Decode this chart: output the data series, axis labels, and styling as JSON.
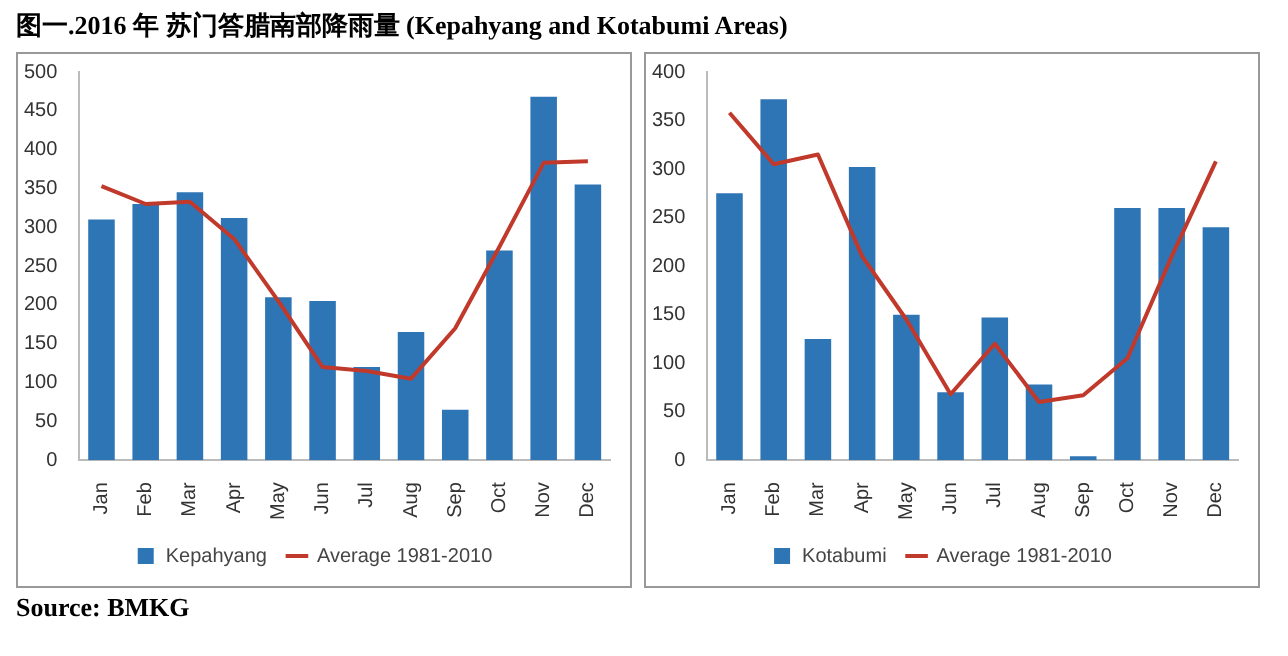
{
  "chart_data": [
    {
      "type": "bar",
      "title": "图一.2016 年 苏门答腊南部降雨量 (Kepahyang and Kotabumi Areas)",
      "categories": [
        "Jan",
        "Feb",
        "Mar",
        "Apr",
        "May",
        "Jun",
        "Jul",
        "Aug",
        "Sep",
        "Oct",
        "Nov",
        "Dec"
      ],
      "ylim": [
        0,
        500
      ],
      "yticks": [
        0,
        50,
        100,
        150,
        200,
        250,
        300,
        350,
        400,
        450,
        500
      ],
      "grid": false,
      "legend": "bottom",
      "series": [
        {
          "name": "Kepahyang",
          "color": "#2e75b6",
          "values": [
            310,
            330,
            345,
            312,
            210,
            205,
            120,
            165,
            65,
            270,
            468,
            355
          ]
        },
        {
          "name": "Average 1981-2010",
          "type": "line",
          "color": "#c0392b",
          "values": [
            353,
            330,
            333,
            285,
            205,
            120,
            115,
            105,
            170,
            275,
            383,
            385
          ]
        }
      ]
    },
    {
      "type": "bar",
      "categories": [
        "Jan",
        "Feb",
        "Mar",
        "Apr",
        "May",
        "Jun",
        "Jul",
        "Aug",
        "Sep",
        "Oct",
        "Nov",
        "Dec"
      ],
      "ylim": [
        0,
        400
      ],
      "yticks": [
        0,
        50,
        100,
        150,
        200,
        250,
        300,
        350,
        400
      ],
      "grid": false,
      "legend": "bottom",
      "annotations": [
        "Source: BMKG"
      ],
      "series": [
        {
          "name": "Kotabumi",
          "color": "#2e75b6",
          "values": [
            275,
            372,
            125,
            302,
            150,
            70,
            147,
            78,
            4,
            260,
            260,
            240
          ]
        },
        {
          "name": "Average 1981-2010",
          "type": "line",
          "color": "#c0392b",
          "values": [
            358,
            305,
            315,
            210,
            145,
            68,
            120,
            60,
            67,
            105,
            210,
            308
          ]
        }
      ]
    }
  ]
}
